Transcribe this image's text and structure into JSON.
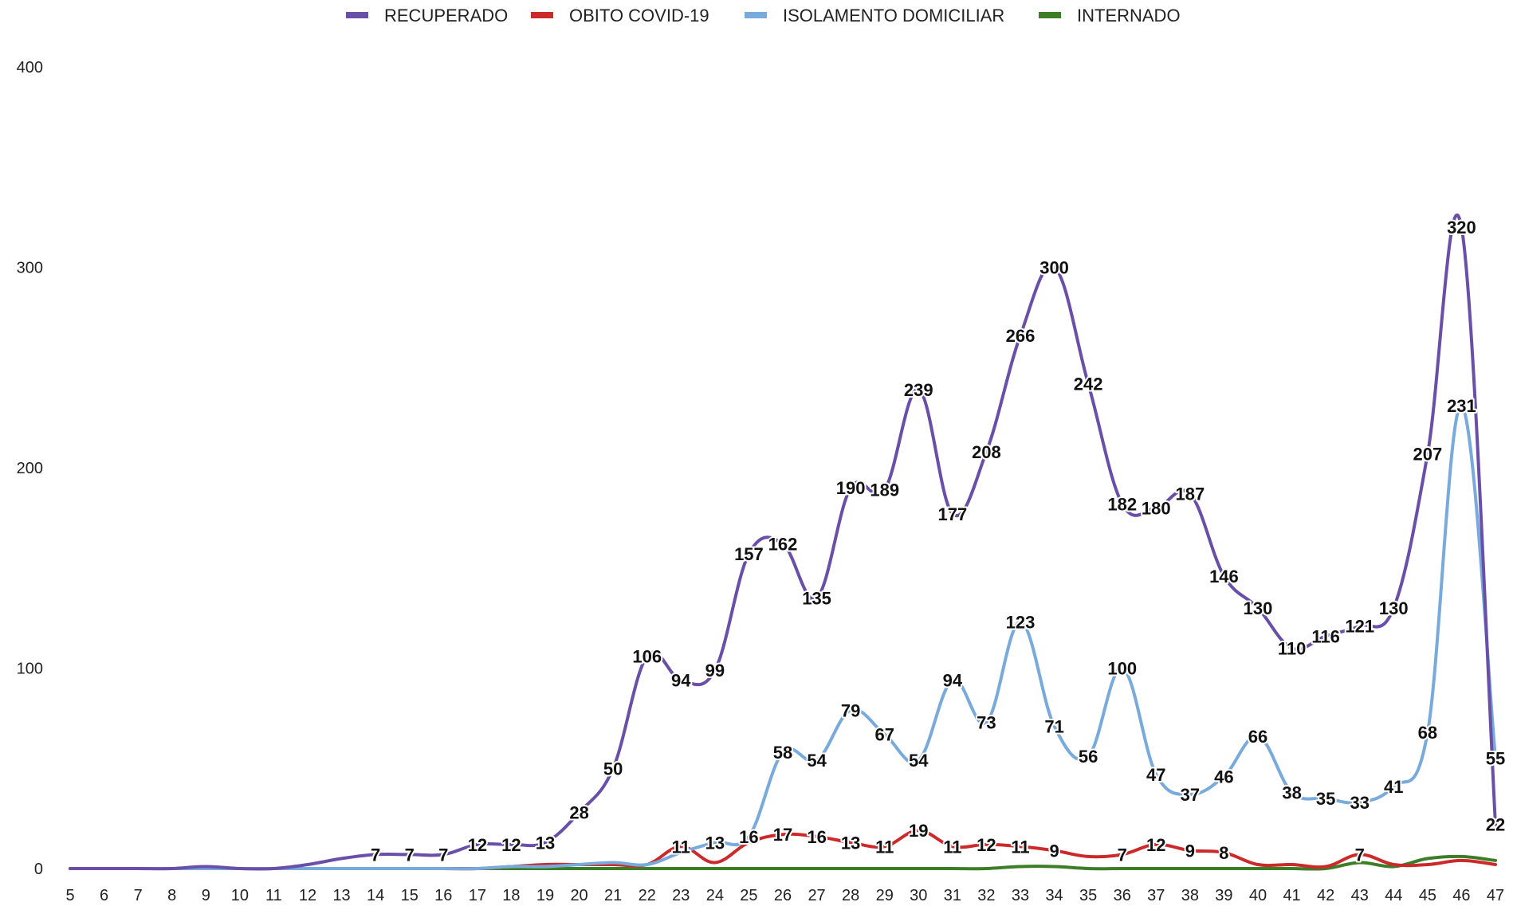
{
  "chart_data": {
    "type": "line",
    "title": "",
    "xlabel": "",
    "ylabel": "",
    "ylim": [
      0,
      400
    ],
    "yticks": [
      0,
      100,
      200,
      300,
      400
    ],
    "grid": false,
    "legend_position": "top-center",
    "categories": [
      5,
      6,
      7,
      8,
      9,
      10,
      11,
      12,
      13,
      14,
      15,
      16,
      17,
      18,
      19,
      20,
      21,
      22,
      23,
      24,
      25,
      26,
      27,
      28,
      29,
      30,
      31,
      32,
      33,
      34,
      35,
      36,
      37,
      38,
      39,
      40,
      41,
      42,
      43,
      44,
      45,
      46,
      47
    ],
    "series": [
      {
        "name": "RECUPERADO",
        "color": "#6a4fa8",
        "values": [
          0,
          0,
          0,
          0,
          1,
          0,
          0,
          2,
          5,
          7,
          7,
          7,
          12,
          12,
          13,
          28,
          50,
          106,
          94,
          99,
          157,
          162,
          135,
          190,
          189,
          239,
          177,
          208,
          266,
          300,
          242,
          182,
          180,
          187,
          146,
          130,
          110,
          116,
          121,
          130,
          207,
          320,
          22
        ],
        "labeled": [
          false,
          false,
          false,
          false,
          false,
          false,
          false,
          false,
          false,
          true,
          true,
          true,
          true,
          true,
          true,
          true,
          true,
          true,
          true,
          true,
          true,
          true,
          true,
          true,
          true,
          true,
          true,
          true,
          true,
          true,
          true,
          true,
          true,
          true,
          true,
          true,
          true,
          true,
          true,
          true,
          true,
          true,
          true
        ]
      },
      {
        "name": "OBITO COVID-19",
        "color": "#cc2a2a",
        "values": [
          0,
          0,
          0,
          0,
          0,
          0,
          0,
          0,
          0,
          0,
          0,
          0,
          0,
          1,
          2,
          2,
          2,
          2,
          11,
          3,
          13,
          17,
          16,
          13,
          11,
          19,
          11,
          12,
          11,
          9,
          6,
          7,
          12,
          9,
          8,
          2,
          2,
          1,
          7,
          2,
          2,
          4,
          2
        ],
        "labeled": [
          false,
          false,
          false,
          false,
          false,
          false,
          false,
          false,
          false,
          false,
          false,
          false,
          false,
          false,
          false,
          false,
          false,
          false,
          true,
          false,
          false,
          true,
          true,
          true,
          true,
          true,
          true,
          true,
          true,
          true,
          false,
          true,
          true,
          true,
          true,
          false,
          false,
          false,
          true,
          false,
          false,
          false,
          false
        ]
      },
      {
        "name": "ISOLAMENTO DOMICILIAR",
        "color": "#78aadb",
        "values": [
          0,
          0,
          0,
          0,
          0,
          0,
          0,
          0,
          0,
          0,
          0,
          0,
          0,
          1,
          1,
          2,
          3,
          2,
          8,
          13,
          16,
          58,
          54,
          79,
          67,
          54,
          94,
          73,
          123,
          71,
          56,
          100,
          47,
          37,
          46,
          66,
          38,
          35,
          33,
          41,
          68,
          231,
          55
        ],
        "labeled": [
          false,
          false,
          false,
          false,
          false,
          false,
          false,
          false,
          false,
          false,
          false,
          false,
          false,
          false,
          false,
          false,
          false,
          false,
          false,
          true,
          true,
          true,
          true,
          true,
          true,
          true,
          true,
          true,
          true,
          true,
          true,
          true,
          true,
          true,
          true,
          true,
          true,
          true,
          true,
          true,
          true,
          true,
          true
        ]
      },
      {
        "name": "INTERNADO",
        "color": "#3c7d28",
        "values": [
          0,
          0,
          0,
          0,
          0,
          0,
          0,
          0,
          0,
          0,
          0,
          0,
          0,
          0,
          0,
          0,
          0,
          0,
          0,
          0,
          0,
          0,
          0,
          0,
          0,
          0,
          0,
          0,
          1,
          1,
          0,
          0,
          0,
          0,
          0,
          0,
          0,
          0,
          3,
          1,
          5,
          6,
          4
        ],
        "labeled": []
      }
    ]
  }
}
